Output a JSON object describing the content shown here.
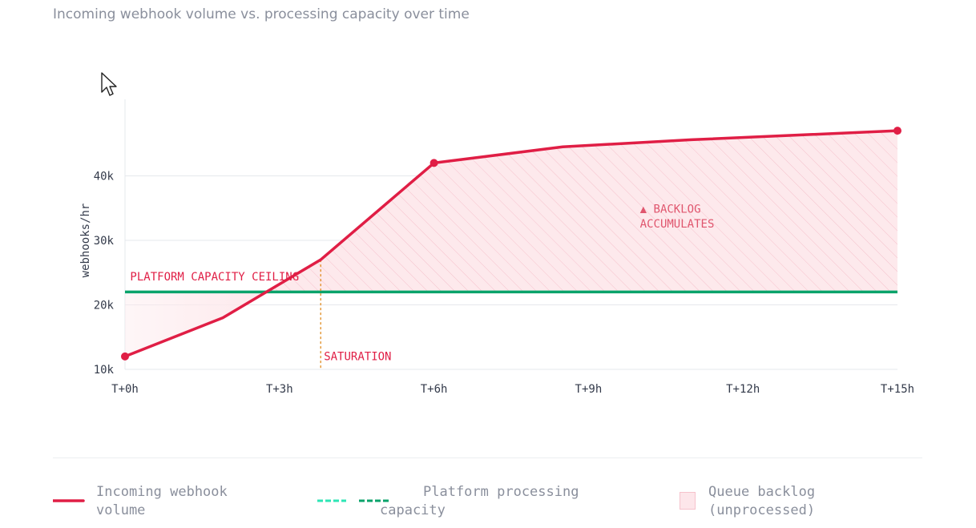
{
  "title": "Incoming webhook volume vs. processing capacity over time",
  "colors": {
    "volume": "#e01e45",
    "capacity": "#0aa36b",
    "capacity_alt": "#2ee6b5",
    "backlog_fill": "#fde6ea",
    "saturation": "#e08a1e",
    "grid": "#e6e8ec",
    "axis_text": "#333a4a"
  },
  "chart_data": {
    "type": "line",
    "title": "Incoming webhook volume vs. processing capacity over time",
    "ylabel": "webhooks/hr",
    "xlabel": "",
    "xlim": [
      0,
      15
    ],
    "ylim": [
      10000,
      50000
    ],
    "x_ticks": [
      0,
      3,
      6,
      9,
      12,
      15
    ],
    "x_tick_labels": [
      "T+0h",
      "T+3h",
      "T+6h",
      "T+9h",
      "T+12h",
      "T+15h"
    ],
    "y_ticks": [
      10000,
      20000,
      30000,
      40000
    ],
    "y_tick_labels": [
      "10k",
      "20k",
      "30k",
      "40k"
    ],
    "grid": "horizontal",
    "series": [
      {
        "name": "Incoming webhook volume",
        "x": [
          0,
          1.9,
          3.8,
          6,
          8.5,
          11,
          13,
          15
        ],
        "y": [
          12000,
          18000,
          27000,
          42000,
          44500,
          45600,
          46300,
          47000
        ],
        "markers_at": [
          0,
          6,
          15
        ]
      },
      {
        "name": "Platform processing capacity",
        "x": [
          0,
          15
        ],
        "y": [
          22000,
          22000
        ]
      }
    ],
    "backlog_area": {
      "name": "Queue backlog (unprocessed)"
    },
    "annotations": [
      {
        "text": "PLATFORM CAPACITY CEILING",
        "x": 0.1,
        "y": 23800
      },
      {
        "text": "SATURATION",
        "x": 3.8,
        "y": 11400
      },
      {
        "text": "▲ BACKLOG",
        "x": 10,
        "y": 34300
      },
      {
        "text": "ACCUMULATES",
        "x": 10,
        "y": 32000
      }
    ],
    "saturation_x": 3.8
  },
  "legend": {
    "volume_line1": "Incoming webhook",
    "volume_line2": "volume",
    "capacity_line1": "Platform processing",
    "capacity_line2": "capacity",
    "backlog_line1": "Queue backlog",
    "backlog_line2": "(unprocessed)"
  }
}
